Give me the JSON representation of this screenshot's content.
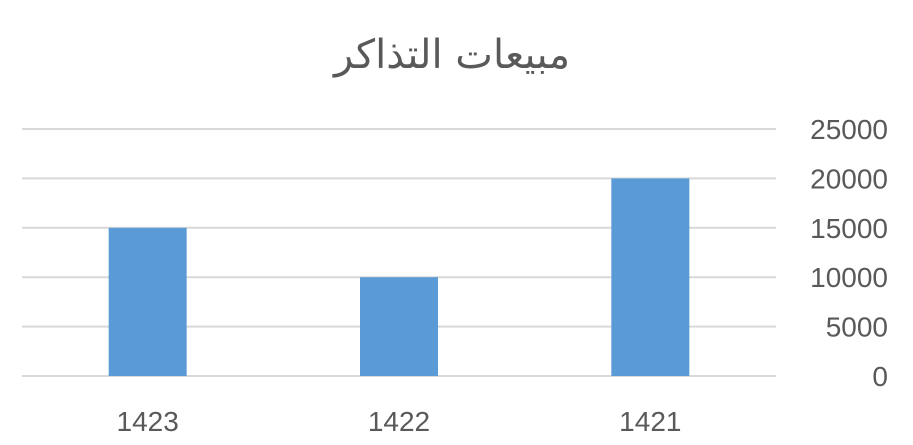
{
  "chart_data": {
    "type": "bar",
    "title": "مبيعات التذاكر",
    "categories": [
      "1421",
      "1422",
      "1423"
    ],
    "series": [
      {
        "values": [
          20000,
          10000,
          15000
        ]
      }
    ],
    "x_axis_reversed": true,
    "y_axis_position": "right",
    "ylim": [
      0,
      25000
    ],
    "yticks": [
      0,
      5000,
      10000,
      15000,
      20000,
      25000
    ],
    "grid": true,
    "legend": "none",
    "bar_color": "#5b9bd5",
    "grid_color": "#d9d9d9",
    "text_color": "#595959"
  }
}
